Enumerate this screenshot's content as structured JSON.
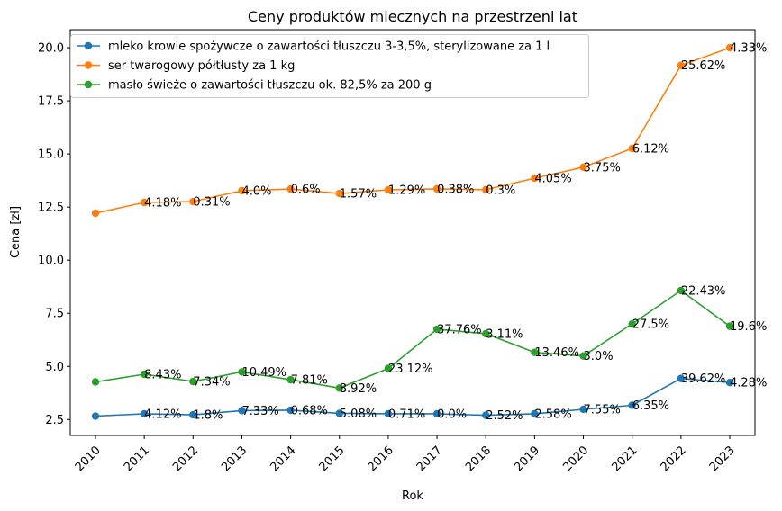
{
  "chart_data": {
    "type": "line",
    "title": "Ceny produktów mlecznych na przestrzeni lat",
    "xlabel": "Rok",
    "ylabel": "Cena [zł]",
    "ylim": [
      1.75,
      20.85
    ],
    "yticks": [
      2.5,
      5.0,
      7.5,
      10.0,
      12.5,
      15.0,
      17.5,
      20.0
    ],
    "ytick_labels": [
      "2.5",
      "5.0",
      "7.5",
      "10.0",
      "12.5",
      "15.0",
      "17.5",
      "20.0"
    ],
    "x": [
      "2010",
      "2011",
      "2012",
      "2013",
      "2014",
      "2015",
      "2016",
      "2017",
      "2018",
      "2019",
      "2020",
      "2021",
      "2022",
      "2023"
    ],
    "grid": false,
    "legend_position": "upper-left",
    "series": [
      {
        "name": "mleko krowie spożywcze o zawartości tłuszczu 3-3,5%, sterylizowane za 1 l",
        "color": "#1f77b4",
        "values": [
          2.66,
          2.77,
          2.72,
          2.92,
          2.94,
          2.79,
          2.77,
          2.77,
          2.7,
          2.77,
          2.98,
          3.17,
          4.43,
          4.24
        ],
        "labels": [
          "",
          "4.12%",
          "1.8%",
          "7.33%",
          "0.68%",
          "5.08%",
          "0.71%",
          "0.0%",
          "2.52%",
          "2.58%",
          "7.55%",
          "6.35%",
          "39.62%",
          "4.28%"
        ]
      },
      {
        "name": "ser twarogowy półtłusty za 1 kg",
        "color": "#ff7f0e",
        "values": [
          12.21,
          12.72,
          12.76,
          13.27,
          13.35,
          13.14,
          13.31,
          13.36,
          13.32,
          13.86,
          14.38,
          15.26,
          19.17,
          20.0
        ],
        "labels": [
          "",
          "4.18%",
          "0.31%",
          "4.0%",
          "0.6%",
          "1.57%",
          "1.29%",
          "0.38%",
          "0.3%",
          "4.05%",
          "3.75%",
          "6.12%",
          "25.62%",
          "4.33%"
        ]
      },
      {
        "name": "masło świeże o zawartości tłuszczu ok. 82,5% za 200 g",
        "color": "#2ca02c",
        "values": [
          4.27,
          4.63,
          4.29,
          4.74,
          4.37,
          3.98,
          4.9,
          6.75,
          6.54,
          5.66,
          5.49,
          7.0,
          8.57,
          6.89
        ],
        "labels": [
          "",
          "8.43%",
          "7.34%",
          "10.49%",
          "7.81%",
          "8.92%",
          "23.12%",
          "37.76%",
          "3.11%",
          "13.46%",
          "3.0%",
          "27.5%",
          "22.43%",
          "19.6%"
        ]
      }
    ]
  }
}
